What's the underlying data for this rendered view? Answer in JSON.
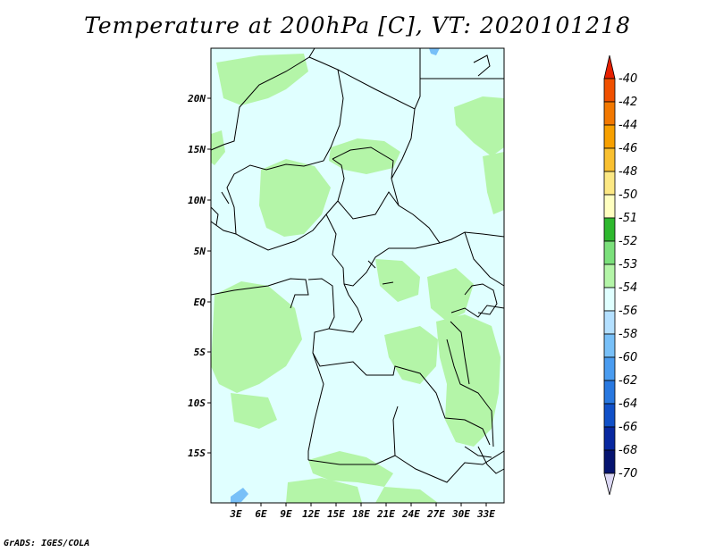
{
  "title": "Temperature at 200hPa [C], VT: 2020101218",
  "credit": "GrADS: IGES/COLA",
  "lat_labels": [
    "20N",
    "15N",
    "10N",
    "5N",
    "EQ",
    "5S",
    "10S",
    "15S"
  ],
  "lon_labels": [
    "3E",
    "6E",
    "9E",
    "12E",
    "15E",
    "18E",
    "21E",
    "24E",
    "27E",
    "30E",
    "33E"
  ],
  "colorbar": {
    "labels": [
      "-40",
      "-42",
      "-44",
      "-46",
      "-48",
      "-50",
      "-51",
      "-52",
      "-53",
      "-54",
      "-56",
      "-58",
      "-60",
      "-62",
      "-64",
      "-66",
      "-68",
      "-70"
    ],
    "colors": [
      "#e62000",
      "#f05000",
      "#f27800",
      "#f7a000",
      "#f9c030",
      "#fce884",
      "#ffffc0",
      "#2eb82e",
      "#7be07b",
      "#b4f5a8",
      "#e0ffff",
      "#b4e0ff",
      "#78c0f8",
      "#4a9cf0",
      "#2878e0",
      "#1050c8",
      "#0828a0",
      "#061470",
      "#dcd8f4"
    ]
  },
  "legend_colors": {
    "background_band": "#e0ffff",
    "patch_band": "#b4f5a8",
    "cold_patch": "#78c0f8"
  }
}
